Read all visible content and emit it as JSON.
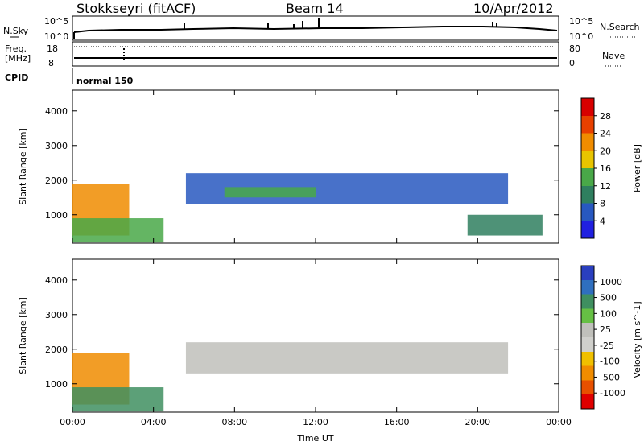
{
  "header": {
    "station": "Stokkseyri (fitACF)",
    "beam": "Beam 14",
    "date": "10/Apr/2012"
  },
  "status_labels": {
    "nsky": "N.Sky",
    "nsearch": "N.Search",
    "freq_line1": "Freq.",
    "freq_line2": "[MHz]",
    "nave": "Nave",
    "cpid": "CPID",
    "cpid_value": "normal 150"
  },
  "status_ticks": {
    "noise_top": "10^5",
    "noise_bottom": "10^0",
    "freq_top": "18",
    "freq_bottom": "8",
    "nave_top": "80",
    "nave_bottom": "0"
  },
  "colors": {
    "background": "#ffffff",
    "power_scale": [
      "#2020e0",
      "#2858c0",
      "#2f7f5f",
      "#49a848",
      "#e8c400",
      "#f08c00",
      "#e84000",
      "#d80000"
    ],
    "velocity_scale": [
      "#2a3fbf",
      "#2f6fbf",
      "#3f8f60",
      "#66c044",
      "#c0c0bb",
      "#d0d0cc",
      "#f0c000",
      "#f08c00",
      "#e85000",
      "#e00000"
    ]
  },
  "chart_data": [
    {
      "type": "heatmap",
      "name": "power_panel",
      "xlabel": "",
      "ylabel": "Slant Range [km]",
      "x_ticks": [
        "00:00",
        "04:00",
        "08:00",
        "12:00",
        "16:00",
        "20:00",
        "00:00"
      ],
      "x_tick_hours": [
        0,
        4,
        8,
        12,
        16,
        20,
        24
      ],
      "y_ticks": [
        1000,
        2000,
        3000,
        4000
      ],
      "ylim": [
        180,
        4600
      ],
      "xlim_hours": [
        0,
        24
      ],
      "colorbar": {
        "label": "Power [dB]",
        "ticks": [
          4,
          8,
          12,
          16,
          20,
          24,
          28
        ],
        "range": [
          0,
          32
        ]
      },
      "features": [
        {
          "desc": "main echo band",
          "start_hour": 5.6,
          "end_hour": 21.5,
          "range_km": [
            1300,
            2200
          ],
          "power_db": 6
        },
        {
          "desc": "inner band core",
          "start_hour": 7.5,
          "end_hour": 12.0,
          "range_km": [
            1500,
            1800
          ],
          "power_db": 14
        },
        {
          "desc": "near range patch",
          "start_hour": 0.0,
          "end_hour": 2.8,
          "range_km": [
            400,
            1900
          ],
          "power_db": 22
        },
        {
          "desc": "near ground scatter",
          "start_hour": 0.0,
          "end_hour": 4.5,
          "range_km": [
            200,
            900
          ],
          "power_db": 14
        },
        {
          "desc": "late evening patch",
          "start_hour": 19.5,
          "end_hour": 23.2,
          "range_km": [
            400,
            1000
          ],
          "power_db": 10
        }
      ]
    },
    {
      "type": "heatmap",
      "name": "velocity_panel",
      "xlabel": "Time UT",
      "ylabel": "Slant Range [km]",
      "x_ticks": [
        "00:00",
        "04:00",
        "08:00",
        "12:00",
        "16:00",
        "20:00",
        "00:00"
      ],
      "x_tick_hours": [
        0,
        4,
        8,
        12,
        16,
        20,
        24
      ],
      "y_ticks": [
        1000,
        2000,
        3000,
        4000
      ],
      "ylim": [
        180,
        4600
      ],
      "xlim_hours": [
        0,
        24
      ],
      "colorbar": {
        "label": "Velocity [m s^-1]",
        "ticks": [
          "1000",
          "500",
          "100",
          "25",
          "-25",
          "-100",
          "-500",
          "-1000"
        ]
      },
      "features": [
        {
          "desc": "main echo band (ground scatter grey)",
          "start_hour": 5.6,
          "end_hour": 21.5,
          "range_km": [
            1300,
            2200
          ],
          "velocity_ms": 0
        },
        {
          "desc": "near range patch",
          "start_hour": 0.0,
          "end_hour": 2.8,
          "range_km": [
            400,
            1900
          ],
          "velocity_ms": -300
        },
        {
          "desc": "near range flows",
          "start_hour": 0.0,
          "end_hour": 4.5,
          "range_km": [
            200,
            900
          ],
          "velocity_ms": 150
        }
      ]
    }
  ]
}
